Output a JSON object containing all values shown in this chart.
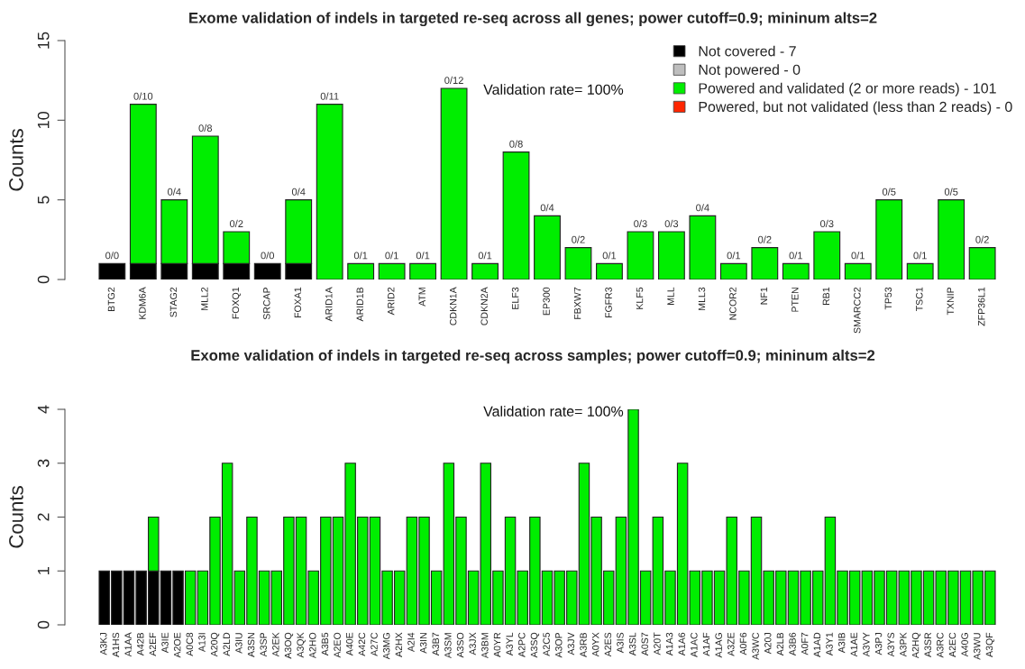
{
  "chart_data": [
    {
      "type": "bar",
      "title": "Exome validation of indels in targeted re-seq across all genes; power cutoff=0.9; mininum alts=2",
      "ylabel": "Counts",
      "categories": [
        "BTG2",
        "KDM6A",
        "STAG2",
        "MLL2",
        "FOXQ1",
        "SRCAP",
        "FOXA1",
        "ARID1A",
        "ARID1B",
        "ARID2",
        "ATM",
        "CDKN1A",
        "CDKN2A",
        "ELF3",
        "EP300",
        "FBXW7",
        "FGFR3",
        "KLF5",
        "MLL",
        "MLL3",
        "NCOR2",
        "NF1",
        "PTEN",
        "RB1",
        "SMARCC2",
        "TP53",
        "TSC1",
        "TXNIP",
        "ZFP36L1"
      ],
      "stacked": true,
      "series": [
        {
          "name": "Not covered - 7",
          "color": "#000000",
          "values": [
            1,
            1,
            1,
            1,
            1,
            1,
            1,
            0,
            0,
            0,
            0,
            0,
            0,
            0,
            0,
            0,
            0,
            0,
            0,
            0,
            0,
            0,
            0,
            0,
            0,
            0,
            0,
            0,
            0
          ]
        },
        {
          "name": "Not powered - 0",
          "color": "#bebebe",
          "values": [
            0,
            0,
            0,
            0,
            0,
            0,
            0,
            0,
            0,
            0,
            0,
            0,
            0,
            0,
            0,
            0,
            0,
            0,
            0,
            0,
            0,
            0,
            0,
            0,
            0,
            0,
            0,
            0,
            0
          ]
        },
        {
          "name": "Powered and validated (2 or more reads) - 101",
          "color": "#00ee00",
          "values": [
            0,
            10,
            4,
            8,
            2,
            0,
            4,
            11,
            1,
            1,
            1,
            12,
            1,
            8,
            4,
            2,
            1,
            3,
            3,
            4,
            1,
            2,
            1,
            3,
            1,
            5,
            1,
            5,
            2
          ]
        },
        {
          "name": "Powered, but not validated (less than 2 reads) - 0",
          "color": "#ff2600",
          "values": [
            0,
            0,
            0,
            0,
            0,
            0,
            0,
            0,
            0,
            0,
            0,
            0,
            0,
            0,
            0,
            0,
            0,
            0,
            0,
            0,
            0,
            0,
            0,
            0,
            0,
            0,
            0,
            0,
            0
          ]
        }
      ],
      "ylim": [
        0,
        15
      ],
      "yticks": [
        0,
        5,
        10,
        15
      ],
      "legend": "top right",
      "annotations": [
        "Validation rate= 100%",
        {
          "text": "0/0",
          "x": "BTG2",
          "y": 1
        },
        {
          "text": "0/10",
          "x": "KDM6A",
          "y": 11
        },
        {
          "text": "0/4",
          "x": "STAG2",
          "y": 5
        },
        {
          "text": "0/8",
          "x": "MLL2",
          "y": 9
        },
        {
          "text": "0/2",
          "x": "FOXQ1",
          "y": 3
        },
        {
          "text": "0/0",
          "x": "SRCAP",
          "y": 1
        },
        {
          "text": "0/4",
          "x": "FOXA1",
          "y": 5
        },
        {
          "text": "0/11",
          "x": "ARID1A",
          "y": 11
        },
        {
          "text": "0/1",
          "x": "ARID1B",
          "y": 1
        },
        {
          "text": "0/1",
          "x": "ARID2",
          "y": 1
        },
        {
          "text": "0/1",
          "x": "ATM",
          "y": 1
        },
        {
          "text": "0/12",
          "x": "CDKN1A",
          "y": 12
        },
        {
          "text": "0/1",
          "x": "CDKN2A",
          "y": 1
        },
        {
          "text": "0/8",
          "x": "ELF3",
          "y": 8
        },
        {
          "text": "0/4",
          "x": "EP300",
          "y": 4
        },
        {
          "text": "0/2",
          "x": "FBXW7",
          "y": 2
        },
        {
          "text": "0/1",
          "x": "FGFR3",
          "y": 1
        },
        {
          "text": "0/3",
          "x": "KLF5",
          "y": 3
        },
        {
          "text": "0/3",
          "x": "MLL",
          "y": 3
        },
        {
          "text": "0/4",
          "x": "MLL3",
          "y": 4
        },
        {
          "text": "0/1",
          "x": "NCOR2",
          "y": 1
        },
        {
          "text": "0/2",
          "x": "NF1",
          "y": 2
        },
        {
          "text": "0/1",
          "x": "PTEN",
          "y": 1
        },
        {
          "text": "0/3",
          "x": "RB1",
          "y": 3
        },
        {
          "text": "0/1",
          "x": "SMARCC2",
          "y": 1
        },
        {
          "text": "0/5",
          "x": "TP53",
          "y": 5
        },
        {
          "text": "0/1",
          "x": "TSC1",
          "y": 1
        },
        {
          "text": "0/5",
          "x": "TXNIP",
          "y": 5
        },
        {
          "text": "0/2",
          "x": "ZFP36L1",
          "y": 2
        }
      ]
    },
    {
      "type": "bar",
      "title": "Exome validation of indels in targeted re-seq across samples; power cutoff=0.9; mininum alts=2",
      "ylabel": "Counts",
      "categories": [
        "A3KJ",
        "A1HS",
        "A1AA",
        "A42B",
        "A2EF",
        "A3IE",
        "A2OE",
        "A0C8",
        "A13I",
        "A20Q",
        "A2LD",
        "A3IU",
        "A3SN",
        "A3SP",
        "A2EK",
        "A3OQ",
        "A3QK",
        "A2HO",
        "A3B5",
        "A2EO",
        "A40E",
        "A42C",
        "A27C",
        "A3MG",
        "A2HX",
        "A2I4",
        "A3IN",
        "A3B7",
        "A3SM",
        "A3SO",
        "A3JX",
        "A3BM",
        "A0YR",
        "A3YL",
        "A2PC",
        "A3SQ",
        "A2C5",
        "A3OP",
        "A3JV",
        "A3RB",
        "A0YX",
        "A2ES",
        "A3IS",
        "A3SL",
        "A0S7",
        "A20T",
        "A1A3",
        "A1A6",
        "A1AC",
        "A1AF",
        "A1AG",
        "A3ZE",
        "A0F6",
        "A3WC",
        "A20J",
        "A2LB",
        "A3B6",
        "A0F7",
        "A1AD",
        "A3Y1",
        "A3IB",
        "A1AE",
        "A3VY",
        "A3PJ",
        "A3YS",
        "A3PK",
        "A2HQ",
        "A3SR",
        "A3RC",
        "A2EC",
        "A40G",
        "A3WU",
        "A3QF"
      ],
      "stacked": true,
      "series": [
        {
          "color": "#000000",
          "values": [
            1,
            1,
            1,
            1,
            1,
            1,
            1,
            0,
            0,
            0,
            0,
            0,
            0,
            0,
            0,
            0,
            0,
            0,
            0,
            0,
            0,
            0,
            0,
            0,
            0,
            0,
            0,
            0,
            0,
            0,
            0,
            0,
            0,
            0,
            0,
            0,
            0,
            0,
            0,
            0,
            0,
            0,
            0,
            0,
            0,
            0,
            0,
            0,
            0,
            0,
            0,
            0,
            0,
            0,
            0,
            0,
            0,
            0,
            0,
            0,
            0,
            0,
            0,
            0,
            0,
            0,
            0,
            0,
            0,
            0,
            0,
            0,
            0
          ]
        },
        {
          "color": "#00ee00",
          "values": [
            0,
            0,
            0,
            0,
            1,
            0,
            0,
            1,
            1,
            2,
            3,
            1,
            2,
            1,
            1,
            2,
            2,
            1,
            2,
            2,
            3,
            2,
            2,
            1,
            1,
            2,
            2,
            1,
            3,
            2,
            1,
            3,
            1,
            2,
            1,
            2,
            1,
            1,
            1,
            3,
            2,
            1,
            2,
            4,
            1,
            2,
            1,
            3,
            1,
            1,
            1,
            2,
            1,
            2,
            1,
            1,
            1,
            1,
            1,
            2,
            1,
            1,
            1,
            1,
            1,
            1,
            1,
            1,
            1,
            1,
            1,
            1,
            1
          ]
        }
      ],
      "ylim": [
        0,
        4
      ],
      "yticks": [
        0,
        1,
        2,
        3,
        4
      ],
      "annotations": [
        "Validation rate= 100%"
      ]
    }
  ]
}
